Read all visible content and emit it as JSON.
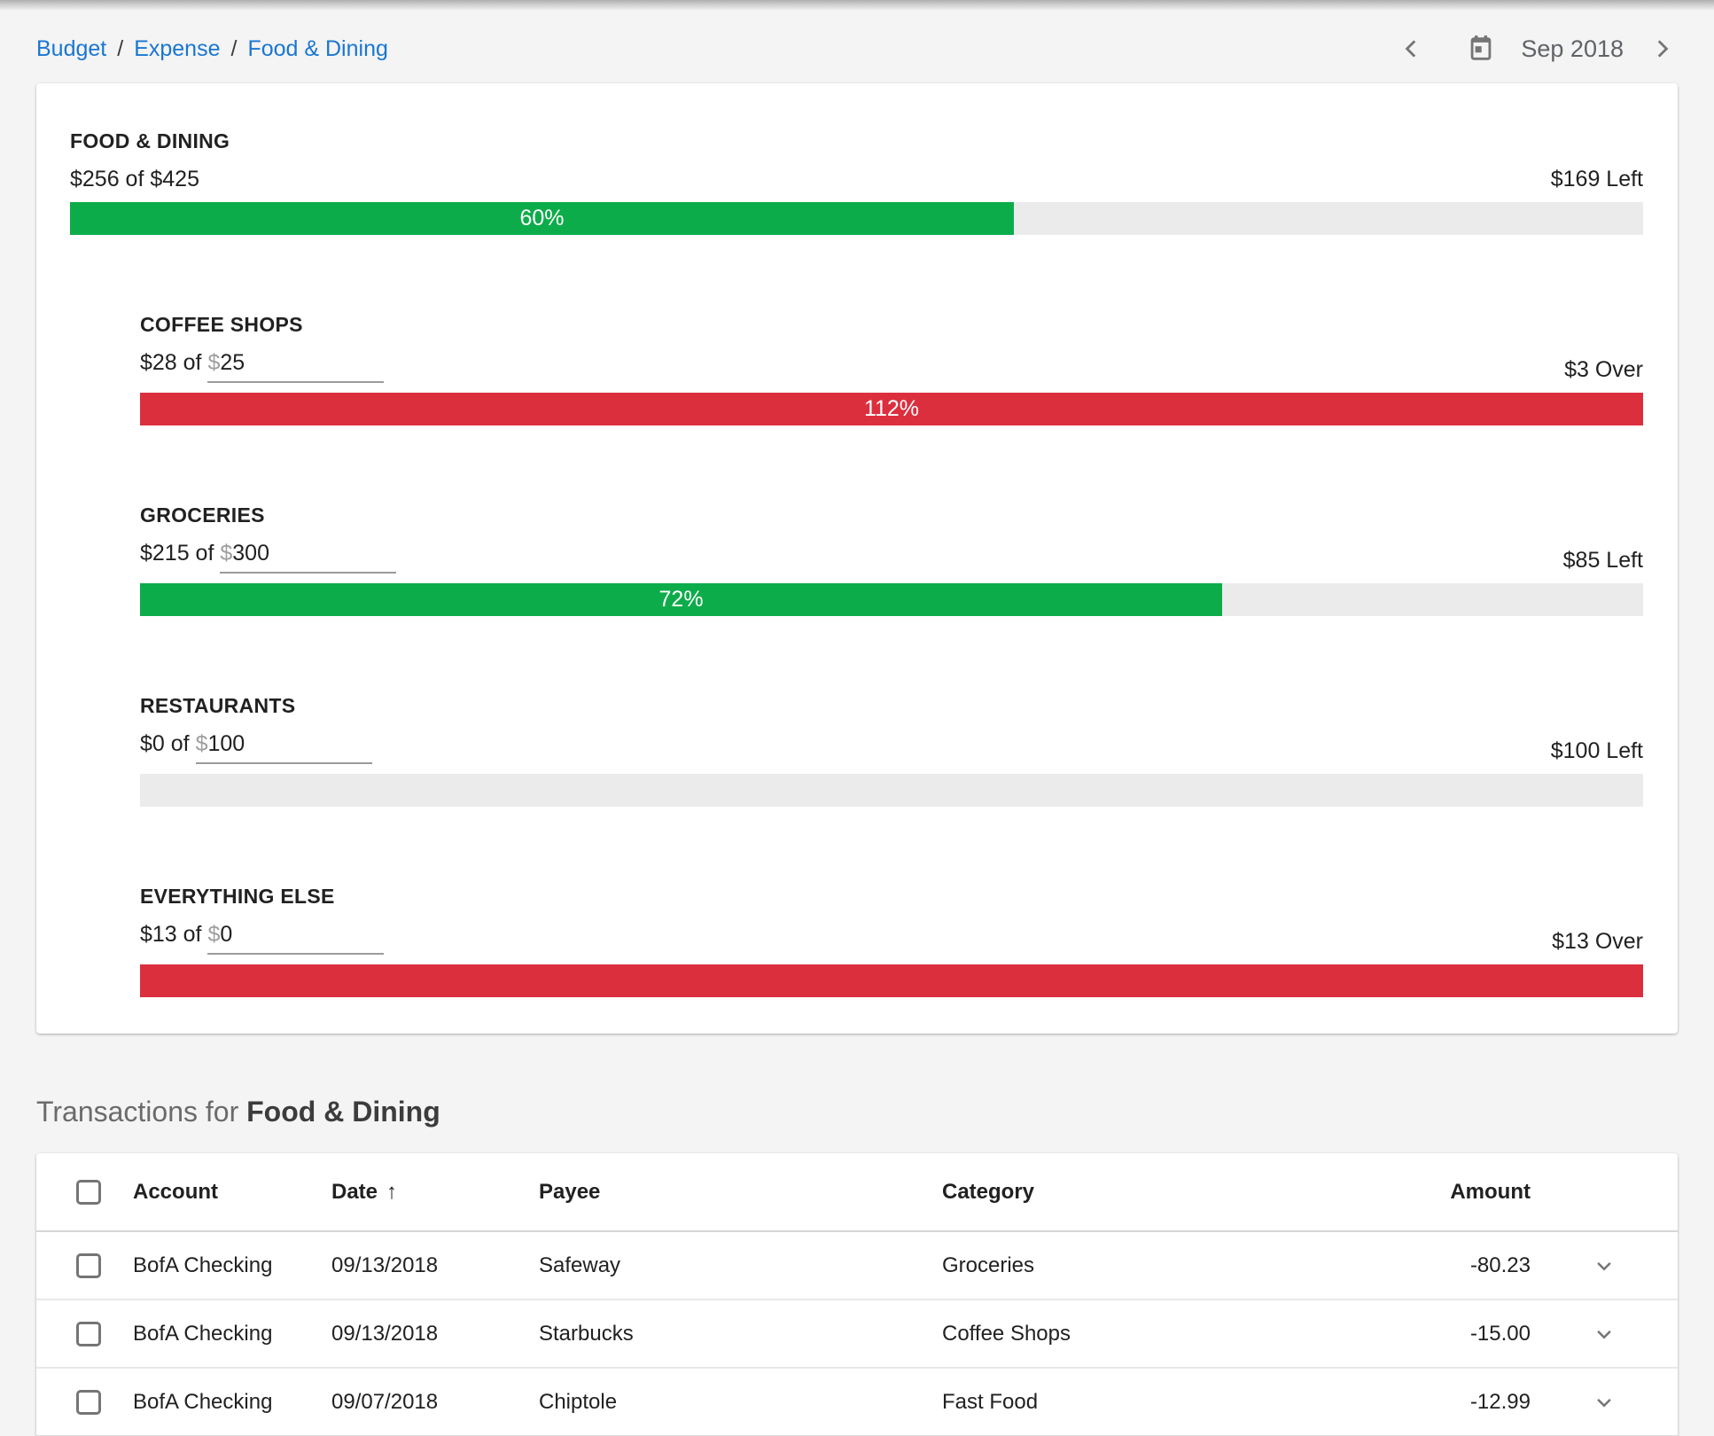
{
  "breadcrumb": {
    "separator": "/",
    "items": [
      {
        "label": "Budget"
      },
      {
        "label": "Expense"
      },
      {
        "label": "Food & Dining"
      }
    ]
  },
  "date_nav": {
    "label": "Sep 2018"
  },
  "budget_card": {
    "total": {
      "name": "FOOD & DINING",
      "spent_of_budget": "$256 of $425",
      "remaining": "$169 Left",
      "percent": 60,
      "percent_label": "60%",
      "state": "under"
    },
    "categories": [
      {
        "name": "COFFEE SHOPS",
        "spent_of": "$28 of",
        "currency": "$",
        "budget_value": "25",
        "remaining": "$3 Over",
        "percent": 112,
        "percent_label": "112%",
        "state": "over"
      },
      {
        "name": "GROCERIES",
        "spent_of": "$215 of",
        "currency": "$",
        "budget_value": "300",
        "remaining": "$85 Left",
        "percent": 72,
        "percent_label": "72%",
        "state": "under"
      },
      {
        "name": "RESTAURANTS",
        "spent_of": "$0 of",
        "currency": "$",
        "budget_value": "100",
        "remaining": "$100 Left",
        "percent": 0,
        "percent_label": "",
        "state": "empty"
      },
      {
        "name": "EVERYTHING ELSE",
        "spent_of": "$13 of",
        "currency": "$",
        "budget_value": "0",
        "remaining": "$13 Over",
        "percent": 100,
        "percent_label": "",
        "state": "over"
      }
    ]
  },
  "transactions": {
    "title_prefix": "Transactions for ",
    "title_strong": "Food & Dining",
    "sort_arrow": "↑",
    "columns": [
      "Account",
      "Date",
      "Payee",
      "Category",
      "Amount"
    ],
    "rows": [
      {
        "account": "BofA Checking",
        "date": "09/13/2018",
        "payee": "Safeway",
        "category": "Groceries",
        "amount": "-80.23"
      },
      {
        "account": "BofA Checking",
        "date": "09/13/2018",
        "payee": "Starbucks",
        "category": "Coffee Shops",
        "amount": "-15.00"
      },
      {
        "account": "BofA Checking",
        "date": "09/07/2018",
        "payee": "Chiptole",
        "category": "Fast Food",
        "amount": "-12.99"
      }
    ]
  },
  "colors": {
    "green": "#0dac4a",
    "red": "#dc2f3e",
    "track": "#ebebeb",
    "link_blue": "#1976d2"
  }
}
